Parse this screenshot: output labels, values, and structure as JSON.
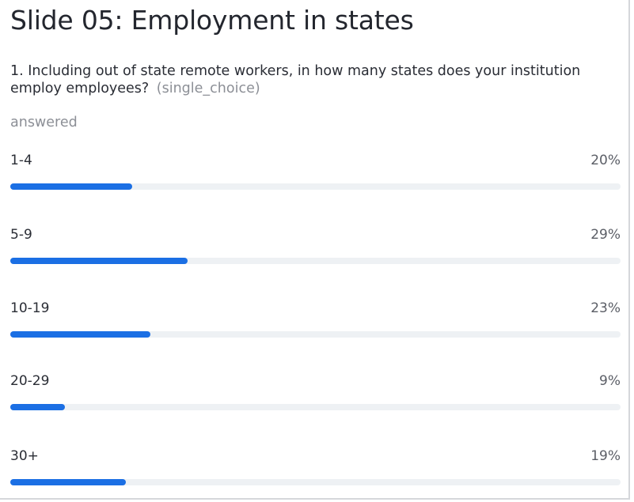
{
  "slide": {
    "title": "Slide 05: Employment in states"
  },
  "question": {
    "text": "1. Including out of state remote workers, in how many states does your institution employ employees?",
    "type_label": "(single_choice)",
    "answered_label": "answered"
  },
  "colors": {
    "bar_fill": "#1b6fe4",
    "bar_track": "#eef1f4"
  },
  "chart_data": {
    "type": "bar",
    "orientation": "horizontal",
    "categories": [
      "1-4",
      "5-9",
      "10-19",
      "20-29",
      "30+"
    ],
    "values": [
      20,
      29,
      23,
      9,
      19
    ],
    "value_labels": [
      "20%",
      "29%",
      "23%",
      "9%",
      "19%"
    ],
    "unit": "%",
    "xlim": [
      0,
      100
    ]
  }
}
